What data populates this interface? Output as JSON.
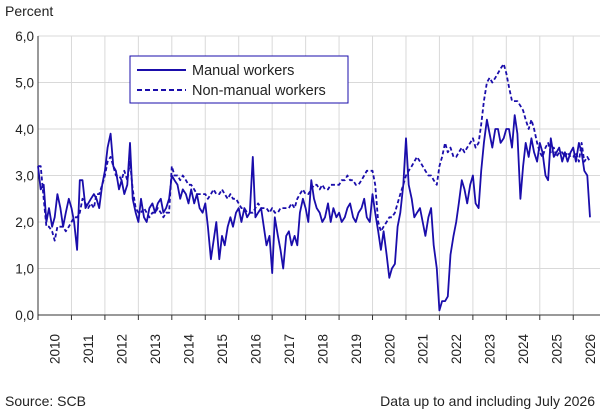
{
  "chart_data": {
    "type": "line",
    "ylabel": "Percent",
    "ylim": [
      0,
      6
    ],
    "yticks": [
      "0,0",
      "1,0",
      "2,0",
      "3,0",
      "4,0",
      "5,0",
      "6,0"
    ],
    "xlim": [
      2010.0,
      2026.8
    ],
    "xticks": [
      "2010",
      "2011",
      "2012",
      "2013",
      "2014",
      "2015",
      "2016",
      "2017",
      "2018",
      "2019",
      "2020",
      "2021",
      "2022",
      "2023",
      "2024",
      "2025",
      "2026"
    ],
    "grid": true,
    "legend": "top-left inside plot",
    "series": [
      {
        "name": "Manual workers",
        "color": "#1a0dab",
        "style": "solid",
        "x": [
          2010.0,
          2010.08,
          2010.17,
          2010.25,
          2010.33,
          2010.42,
          2010.5,
          2010.58,
          2010.67,
          2010.75,
          2010.83,
          2010.92,
          2011.0,
          2011.08,
          2011.17,
          2011.25,
          2011.33,
          2011.42,
          2011.5,
          2011.58,
          2011.67,
          2011.75,
          2011.83,
          2011.92,
          2012.0,
          2012.08,
          2012.17,
          2012.25,
          2012.33,
          2012.42,
          2012.5,
          2012.58,
          2012.67,
          2012.75,
          2012.83,
          2012.92,
          2013.0,
          2013.08,
          2013.17,
          2013.25,
          2013.33,
          2013.42,
          2013.5,
          2013.58,
          2013.67,
          2013.75,
          2013.83,
          2013.92,
          2014.0,
          2014.08,
          2014.17,
          2014.25,
          2014.33,
          2014.42,
          2014.5,
          2014.58,
          2014.67,
          2014.75,
          2014.83,
          2014.92,
          2015.0,
          2015.08,
          2015.17,
          2015.25,
          2015.33,
          2015.42,
          2015.5,
          2015.58,
          2015.67,
          2015.75,
          2015.83,
          2015.92,
          2016.0,
          2016.08,
          2016.17,
          2016.25,
          2016.33,
          2016.42,
          2016.5,
          2016.58,
          2016.67,
          2016.75,
          2016.83,
          2016.92,
          2017.0,
          2017.08,
          2017.17,
          2017.25,
          2017.33,
          2017.42,
          2017.5,
          2017.58,
          2017.67,
          2017.75,
          2017.83,
          2017.92,
          2018.0,
          2018.08,
          2018.17,
          2018.25,
          2018.33,
          2018.42,
          2018.5,
          2018.58,
          2018.67,
          2018.75,
          2018.83,
          2018.92,
          2019.0,
          2019.08,
          2019.17,
          2019.25,
          2019.33,
          2019.42,
          2019.5,
          2019.58,
          2019.67,
          2019.75,
          2019.83,
          2019.92,
          2020.0,
          2020.08,
          2020.17,
          2020.25,
          2020.33,
          2020.42,
          2020.5,
          2020.58,
          2020.67,
          2020.75,
          2020.83,
          2020.92,
          2021.0,
          2021.08,
          2021.17,
          2021.25,
          2021.33,
          2021.42,
          2021.5,
          2021.58,
          2021.67,
          2021.75,
          2021.83,
          2021.92,
          2022.0,
          2022.08,
          2022.17,
          2022.25,
          2022.33,
          2022.42,
          2022.5,
          2022.58,
          2022.67,
          2022.75,
          2022.83,
          2022.92,
          2023.0,
          2023.08,
          2023.17,
          2023.25,
          2023.33,
          2023.42,
          2023.5,
          2023.58,
          2023.67,
          2023.75,
          2023.83,
          2023.92,
          2024.0,
          2024.08,
          2024.17,
          2024.25,
          2024.33,
          2024.42,
          2024.5,
          2024.58,
          2024.67,
          2024.75,
          2024.83,
          2024.92,
          2025.0,
          2025.08,
          2025.17,
          2025.25,
          2025.33,
          2025.42,
          2025.5,
          2025.58,
          2025.67,
          2025.75,
          2025.83,
          2025.92,
          2026.0,
          2026.08,
          2026.17,
          2026.25,
          2026.33,
          2026.42,
          2026.5
        ],
        "values": [
          3.2,
          2.7,
          2.8,
          2.0,
          2.3,
          1.9,
          2.1,
          2.6,
          2.3,
          1.9,
          2.2,
          2.5,
          2.3,
          2.0,
          1.4,
          2.9,
          2.9,
          2.3,
          2.4,
          2.5,
          2.6,
          2.5,
          2.3,
          2.8,
          3.1,
          3.6,
          3.9,
          3.2,
          3.1,
          2.7,
          2.9,
          2.6,
          2.8,
          3.7,
          2.5,
          2.2,
          2.0,
          2.5,
          2.1,
          2.0,
          2.3,
          2.4,
          2.2,
          2.4,
          2.5,
          2.2,
          2.3,
          2.5,
          3.0,
          2.9,
          2.8,
          2.5,
          2.7,
          2.6,
          2.4,
          2.7,
          2.4,
          2.6,
          2.3,
          2.2,
          2.4,
          1.9,
          1.2,
          1.6,
          2.0,
          1.2,
          1.7,
          1.5,
          1.9,
          2.1,
          1.9,
          2.2,
          2.3,
          2.0,
          2.3,
          2.1,
          2.2,
          3.4,
          2.1,
          2.2,
          2.3,
          1.9,
          1.5,
          1.7,
          0.9,
          2.1,
          1.7,
          1.4,
          1.0,
          1.7,
          1.8,
          1.5,
          1.7,
          1.5,
          2.2,
          2.5,
          2.3,
          2.0,
          2.9,
          2.5,
          2.3,
          2.2,
          2.0,
          2.1,
          2.4,
          2.0,
          2.3,
          2.1,
          2.2,
          2.0,
          2.1,
          2.3,
          2.4,
          2.1,
          2.0,
          2.2,
          2.3,
          2.5,
          2.1,
          2.0,
          2.6,
          2.2,
          1.8,
          1.4,
          1.8,
          1.3,
          0.8,
          1.0,
          1.1,
          1.9,
          2.2,
          2.8,
          3.8,
          2.8,
          2.5,
          2.1,
          2.2,
          2.3,
          2.0,
          1.7,
          2.1,
          2.3,
          1.5,
          1.0,
          0.1,
          0.3,
          0.3,
          0.4,
          1.3,
          1.7,
          2.0,
          2.4,
          2.9,
          2.7,
          2.4,
          2.8,
          3.0,
          2.4,
          2.3,
          3.1,
          3.7,
          4.2,
          3.9,
          3.6,
          4.0,
          4.0,
          3.7,
          3.8,
          4.0,
          4.0,
          3.6,
          4.3,
          3.9,
          2.5,
          3.2,
          3.7,
          3.4,
          3.8,
          3.5,
          3.3,
          3.7,
          3.5,
          3.0,
          2.9,
          3.8,
          3.4,
          3.5,
          3.6,
          3.3,
          3.5,
          3.3,
          3.5,
          3.6,
          3.3,
          3.7,
          3.5,
          3.1,
          3.0,
          2.1
        ]
      },
      {
        "name": "Non-manual workers",
        "color": "#1a0dab",
        "style": "dashed",
        "x": [
          2010.0,
          2010.08,
          2010.17,
          2010.25,
          2010.33,
          2010.42,
          2010.5,
          2010.58,
          2010.67,
          2010.75,
          2010.83,
          2010.92,
          2011.0,
          2011.08,
          2011.17,
          2011.25,
          2011.33,
          2011.42,
          2011.5,
          2011.58,
          2011.67,
          2011.75,
          2011.83,
          2011.92,
          2012.0,
          2012.08,
          2012.17,
          2012.25,
          2012.33,
          2012.42,
          2012.5,
          2012.58,
          2012.67,
          2012.75,
          2012.83,
          2012.92,
          2013.0,
          2013.08,
          2013.17,
          2013.25,
          2013.33,
          2013.42,
          2013.5,
          2013.58,
          2013.67,
          2013.75,
          2013.83,
          2013.92,
          2014.0,
          2014.08,
          2014.17,
          2014.25,
          2014.33,
          2014.42,
          2014.5,
          2014.58,
          2014.67,
          2014.75,
          2014.83,
          2014.92,
          2015.0,
          2015.08,
          2015.17,
          2015.25,
          2015.33,
          2015.42,
          2015.5,
          2015.58,
          2015.67,
          2015.75,
          2015.83,
          2015.92,
          2016.0,
          2016.08,
          2016.17,
          2016.25,
          2016.33,
          2016.42,
          2016.5,
          2016.58,
          2016.67,
          2016.75,
          2016.83,
          2016.92,
          2017.0,
          2017.08,
          2017.17,
          2017.25,
          2017.33,
          2017.42,
          2017.5,
          2017.58,
          2017.67,
          2017.75,
          2017.83,
          2017.92,
          2018.0,
          2018.08,
          2018.17,
          2018.25,
          2018.33,
          2018.42,
          2018.5,
          2018.58,
          2018.67,
          2018.75,
          2018.83,
          2018.92,
          2019.0,
          2019.08,
          2019.17,
          2019.25,
          2019.33,
          2019.42,
          2019.5,
          2019.58,
          2019.67,
          2019.75,
          2019.83,
          2019.92,
          2020.0,
          2020.08,
          2020.17,
          2020.25,
          2020.33,
          2020.42,
          2020.5,
          2020.58,
          2020.67,
          2020.75,
          2020.83,
          2020.92,
          2021.0,
          2021.08,
          2021.17,
          2021.25,
          2021.33,
          2021.42,
          2021.5,
          2021.58,
          2021.67,
          2021.75,
          2021.83,
          2021.92,
          2022.0,
          2022.08,
          2022.17,
          2022.25,
          2022.33,
          2022.42,
          2022.5,
          2022.58,
          2022.67,
          2022.75,
          2022.83,
          2022.92,
          2023.0,
          2023.08,
          2023.17,
          2023.25,
          2023.33,
          2023.42,
          2023.5,
          2023.58,
          2023.67,
          2023.75,
          2023.83,
          2023.92,
          2024.0,
          2024.08,
          2024.17,
          2024.25,
          2024.33,
          2024.42,
          2024.5,
          2024.58,
          2024.67,
          2024.75,
          2024.83,
          2024.92,
          2025.0,
          2025.08,
          2025.17,
          2025.25,
          2025.33,
          2025.42,
          2025.5,
          2025.58,
          2025.67,
          2025.75,
          2025.83,
          2025.92,
          2026.0,
          2026.08,
          2026.17,
          2026.25,
          2026.33,
          2026.42,
          2026.5
        ],
        "values": [
          3.2,
          3.2,
          2.5,
          1.9,
          1.9,
          1.8,
          1.6,
          1.9,
          1.9,
          1.9,
          1.8,
          1.9,
          2.0,
          2.1,
          2.1,
          2.2,
          2.5,
          2.4,
          2.3,
          2.4,
          2.3,
          2.6,
          2.6,
          2.8,
          3.0,
          3.3,
          3.4,
          3.2,
          3.0,
          3.0,
          2.9,
          3.1,
          2.9,
          3.3,
          2.7,
          2.3,
          2.2,
          2.2,
          2.3,
          2.2,
          2.1,
          2.2,
          2.2,
          2.3,
          2.2,
          2.1,
          2.2,
          2.2,
          3.2,
          3.0,
          3.0,
          2.9,
          3.0,
          2.9,
          2.8,
          2.8,
          2.7,
          2.6,
          2.6,
          2.6,
          2.6,
          2.5,
          2.6,
          2.7,
          2.6,
          2.6,
          2.7,
          2.6,
          2.5,
          2.6,
          2.5,
          2.5,
          2.4,
          2.3,
          2.3,
          2.2,
          2.2,
          2.2,
          2.3,
          2.4,
          2.3,
          2.3,
          2.3,
          2.2,
          2.3,
          2.2,
          2.2,
          2.3,
          2.3,
          2.3,
          2.3,
          2.4,
          2.3,
          2.5,
          2.6,
          2.7,
          2.6,
          2.6,
          2.7,
          2.8,
          2.8,
          2.7,
          2.8,
          2.7,
          2.7,
          2.8,
          2.8,
          2.8,
          2.8,
          2.9,
          2.9,
          3.0,
          2.9,
          2.9,
          2.8,
          2.8,
          2.9,
          3.0,
          3.1,
          3.1,
          3.1,
          2.8,
          2.0,
          1.8,
          1.9,
          2.0,
          2.1,
          2.1,
          2.2,
          2.4,
          2.6,
          2.8,
          3.0,
          3.1,
          3.2,
          3.3,
          3.4,
          3.3,
          3.2,
          3.1,
          3.0,
          3.0,
          2.9,
          2.8,
          3.2,
          3.4,
          3.7,
          3.5,
          3.6,
          3.4,
          3.4,
          3.5,
          3.6,
          3.5,
          3.6,
          3.7,
          3.8,
          3.6,
          3.7,
          4.1,
          4.6,
          5.0,
          5.1,
          5.0,
          5.1,
          5.2,
          5.3,
          5.4,
          5.2,
          4.9,
          4.6,
          4.6,
          4.6,
          4.5,
          4.4,
          4.2,
          4.0,
          4.2,
          4.0,
          3.7,
          3.5,
          3.4,
          3.6,
          3.7,
          3.5,
          3.6,
          3.4,
          3.5,
          3.5,
          3.4,
          3.5,
          3.4,
          3.4,
          3.5,
          3.3,
          3.7,
          3.3,
          3.4,
          3.3
        ]
      }
    ]
  },
  "footer": {
    "source": "Source: SCB",
    "note": "Data up to and including July 2026"
  }
}
